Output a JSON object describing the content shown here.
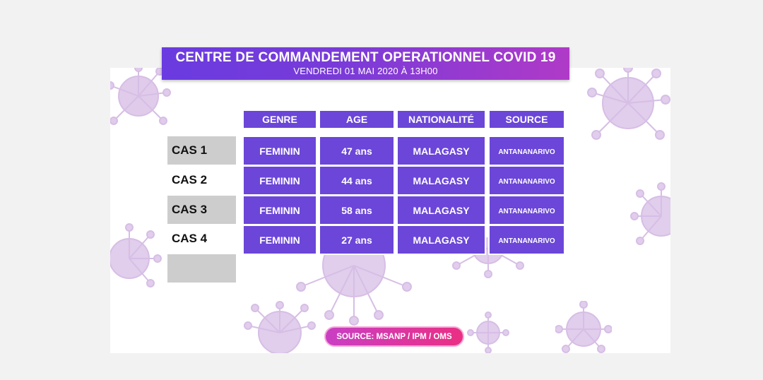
{
  "header": {
    "title": "CENTRE DE COMMANDEMENT OPERATIONNEL COVID 19",
    "subtitle": "VENDREDI 01 MAI 2020 À 13H00"
  },
  "table": {
    "columns": [
      "GENRE",
      "AGE",
      "NATIONALITÉ",
      "SOURCE"
    ],
    "rows": [
      {
        "label": "CAS 1",
        "genre": "FEMININ",
        "age": "47 ans",
        "nationalite": "MALAGASY",
        "source": "ANTANANARIVO"
      },
      {
        "label": "CAS 2",
        "genre": "FEMININ",
        "age": "44 ans",
        "nationalite": "MALAGASY",
        "source": "ANTANANARIVO"
      },
      {
        "label": "CAS 3",
        "genre": "FEMININ",
        "age": "58 ans",
        "nationalite": "MALAGASY",
        "source": "ANTANANARIVO"
      },
      {
        "label": "CAS 4",
        "genre": "FEMININ",
        "age": "27 ans",
        "nationalite": "MALAGASY",
        "source": "ANTANANARIVO"
      }
    ]
  },
  "footer": {
    "source": "SOURCE: MSANP / IPM / OMS"
  },
  "colors": {
    "header_gradient_start": "#6a3be0",
    "header_gradient_end": "#b03ac8",
    "cell": "#6b46d8",
    "row_label_gray": "#cdcdcd",
    "pill_start": "#c93fc4",
    "pill_end": "#ea2f84"
  }
}
